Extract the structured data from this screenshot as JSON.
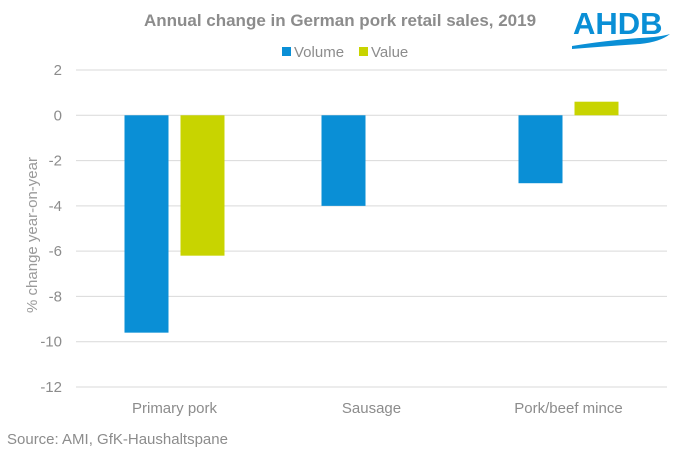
{
  "logo": {
    "text": "AHDB",
    "color": "#0a8fd6"
  },
  "source": "Source: AMI, GfK-Haushaltspane",
  "chart_data": {
    "type": "bar",
    "title": "Annual change in German pork retail sales, 2019",
    "xlabel": "",
    "ylabel": "% change year-on-year",
    "categories": [
      "Primary pork",
      "Sausage",
      "Pork/beef mince"
    ],
    "series": [
      {
        "name": "Volume",
        "color": "#0a8fd6",
        "values": [
          -9.6,
          -4.0,
          -3.0
        ]
      },
      {
        "name": "Value",
        "color": "#c8d400",
        "values": [
          -6.2,
          null,
          0.6
        ]
      }
    ],
    "ylim": [
      -12,
      2
    ],
    "yticks": [
      2,
      0,
      -2,
      -4,
      -6,
      -8,
      -10,
      -12
    ],
    "grid": true,
    "legend_position": "top-center"
  }
}
